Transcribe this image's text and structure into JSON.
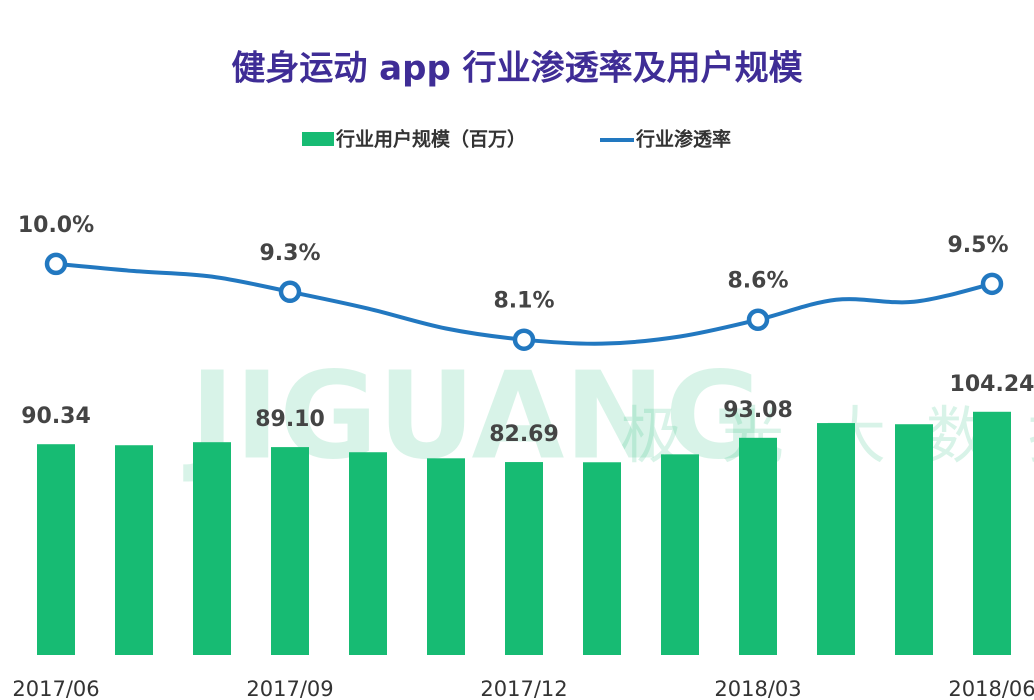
{
  "chart_data": {
    "type": "bar-line",
    "title": "健身运动 app 行业渗透率及用户规模",
    "watermark": {
      "latin": "JIGUANG",
      "cjk": "极光大数据"
    },
    "categories": [
      "2017/06",
      null,
      null,
      "2017/09",
      null,
      null,
      "2017/12",
      null,
      null,
      "2018/03",
      null,
      null,
      "2018/06"
    ],
    "series": [
      {
        "name": "行业用户规模（百万）",
        "type": "bar",
        "color": "#17bb73",
        "values": [
          90.34,
          89.9,
          91.2,
          89.1,
          86.9,
          84.3,
          82.69,
          82.6,
          86.0,
          93.08,
          99.4,
          98.9,
          104.24
        ],
        "value_labels": [
          "90.34",
          null,
          null,
          "89.10",
          null,
          null,
          "82.69",
          null,
          null,
          "93.08",
          null,
          null,
          "104.24"
        ]
      },
      {
        "name": "行业渗透率",
        "type": "line",
        "axis": "y2",
        "color": "#2278c0",
        "values": [
          10.0,
          9.82,
          9.68,
          9.3,
          8.88,
          8.38,
          8.1,
          8.0,
          8.18,
          8.6,
          9.1,
          9.05,
          9.5
        ],
        "value_labels": [
          "10.0%",
          null,
          null,
          "9.3%",
          null,
          null,
          "8.1%",
          null,
          null,
          "8.6%",
          null,
          null,
          "9.5%"
        ]
      }
    ],
    "ylim": [
      0,
      195
    ],
    "y2lim": [
      0.2,
      11.6
    ]
  }
}
